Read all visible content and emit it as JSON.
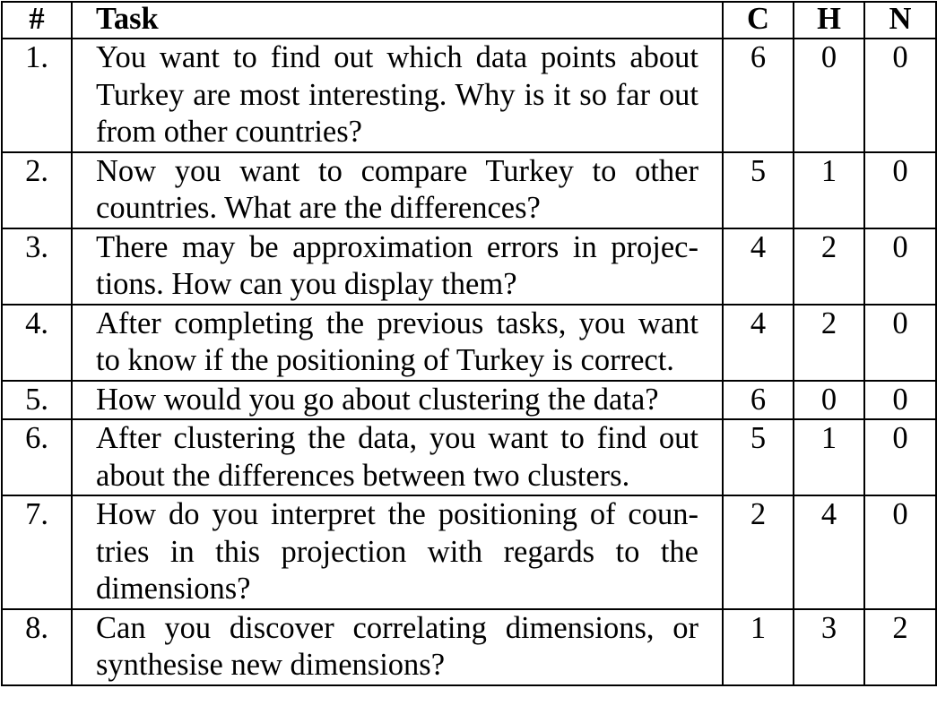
{
  "table": {
    "headers": {
      "num": "#",
      "task": "Task",
      "c": "C",
      "h": "H",
      "n": "N"
    },
    "rows": [
      {
        "num": "1.",
        "task": "You want to find out which data points about Turkey are most interesting. Why is it so far out from other countries?",
        "c": "6",
        "h": "0",
        "n": "0"
      },
      {
        "num": "2.",
        "task": "Now you want to compare Turkey to other countries. What are the differences?",
        "c": "5",
        "h": "1",
        "n": "0"
      },
      {
        "num": "3.",
        "task": "There may be approximation errors in projec-tions. How can you display them?",
        "c": "4",
        "h": "2",
        "n": "0"
      },
      {
        "num": "4.",
        "task": "After completing the previous tasks, you want to know if the positioning of Turkey is correct.",
        "c": "4",
        "h": "2",
        "n": "0"
      },
      {
        "num": "5.",
        "task": "How would you go about clustering the data?",
        "c": "6",
        "h": "0",
        "n": "0"
      },
      {
        "num": "6.",
        "task": "After clustering the data, you want to find out about the differences between two clusters.",
        "c": "5",
        "h": "1",
        "n": "0"
      },
      {
        "num": "7.",
        "task": "How do you interpret the positioning of coun-tries in this projection with regards to the dimensions?",
        "c": "2",
        "h": "4",
        "n": "0"
      },
      {
        "num": "8.",
        "task": "Can you discover correlating dimensions, or synthesise new dimensions?",
        "c": "1",
        "h": "3",
        "n": "2"
      }
    ]
  }
}
